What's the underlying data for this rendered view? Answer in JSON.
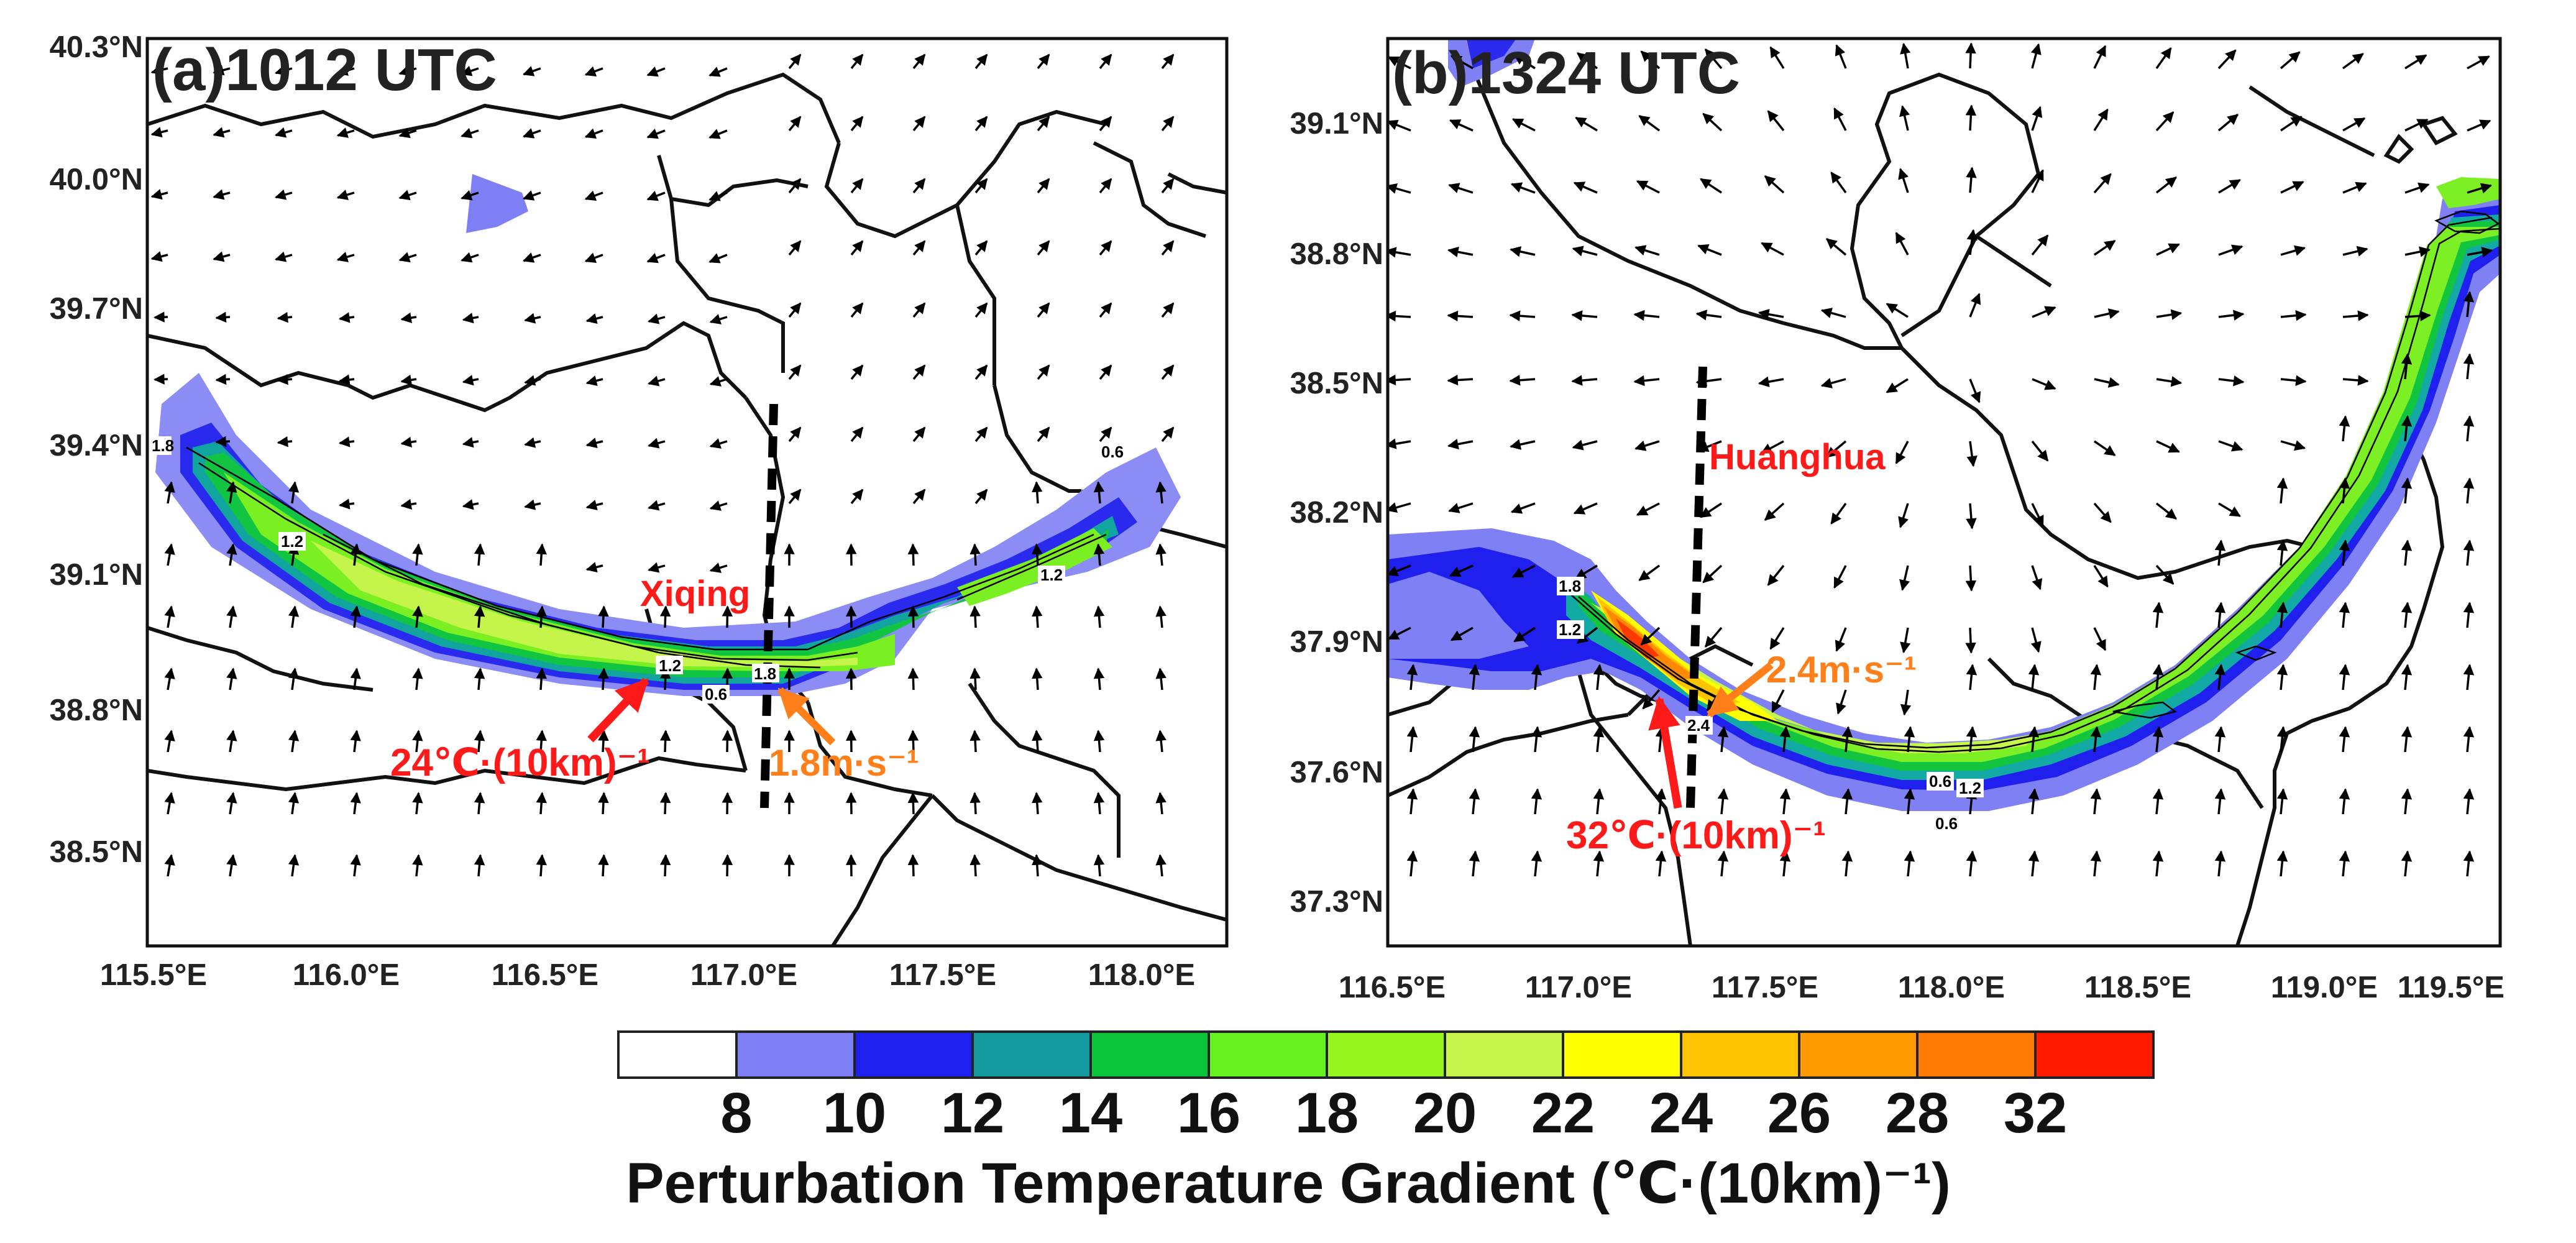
{
  "panels": [
    {
      "id": "a",
      "title": "(a)1012 UTC",
      "y_ticks": [
        "40.3°N",
        "40.0°N",
        "39.7°N",
        "39.4°N",
        "39.1°N",
        "38.8°N",
        "38.5°N"
      ],
      "x_ticks": [
        "115.5°E",
        "116.0°E",
        "116.5°E",
        "117.0°E",
        "117.5°E",
        "118.0°E"
      ],
      "annotations": {
        "place": "Xiqing",
        "gradient": "24℃·(10km)⁻¹",
        "wind": "1.8m·s⁻¹"
      },
      "contour_labels": [
        "1.2",
        "1.2",
        "1.8",
        "0.6",
        "0.6",
        "1.2",
        "0.6",
        "1.8"
      ]
    },
    {
      "id": "b",
      "title": "(b)1324 UTC",
      "y_ticks": [
        "39.1°N",
        "38.8°N",
        "38.5°N",
        "38.2°N",
        "37.9°N",
        "37.6°N",
        "37.3°N"
      ],
      "x_ticks": [
        "116.5°E",
        "117.0°E",
        "117.5°E",
        "118.0°E",
        "118.5°E",
        "119.0°E",
        "119.5°E"
      ],
      "annotations": {
        "place": "Huanghua",
        "gradient": "32℃·(10km)⁻¹",
        "wind": "2.4m·s⁻¹"
      },
      "contour_labels": [
        "1.8",
        "1.2",
        "2.4",
        "0.6",
        "1.2",
        "0.6"
      ]
    }
  ],
  "colorbar": {
    "colors": [
      "#ffffff",
      "#7f7ff5",
      "#2020ee",
      "#129a9e",
      "#0bc43c",
      "#66f21e",
      "#96f51e",
      "#c8f54a",
      "#ffff00",
      "#ffc400",
      "#ff9a00",
      "#ff7a00",
      "#ff1a00"
    ],
    "labels": [
      "8",
      "10",
      "12",
      "14",
      "16",
      "18",
      "20",
      "22",
      "24",
      "26",
      "28",
      "32"
    ],
    "title": "Perturbation Temperature Gradient (℃·(10km)⁻¹)"
  },
  "colors": {
    "annotation_red": "#ff1a1a",
    "annotation_orange": "#ff7f1a"
  }
}
